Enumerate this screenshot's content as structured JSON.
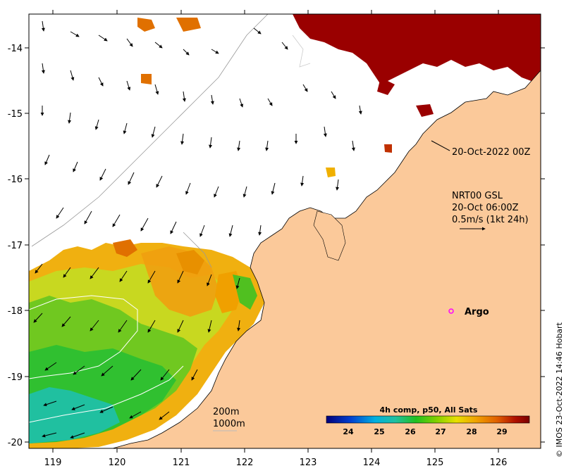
{
  "map": {
    "x_ticks": [
      "119",
      "120",
      "121",
      "122",
      "123",
      "124",
      "125",
      "126"
    ],
    "y_ticks": [
      "-14",
      "-15",
      "-16",
      "-17",
      "-18",
      "-19",
      "-20"
    ],
    "colors": {
      "land": "#fbc99a",
      "cloud": "#ffffff",
      "hot": "#9a0000",
      "frame": "#000000"
    }
  },
  "annotations": {
    "date_label": "20-Oct-2022 00Z",
    "current_source": "NRT00 GSL",
    "current_time": "20-Oct 06:00Z",
    "current_scale": "0.5m/s (1kt 24h)",
    "argo_label": "Argo",
    "contour_200": "200m",
    "contour_1000": "1000m",
    "credit": "© IMOS 23-Oct-2022 14:46 Hobart"
  },
  "colorbar": {
    "title": "4h comp, p50, All Sats",
    "ticks": [
      "24",
      "25",
      "26",
      "27",
      "28",
      "29"
    ],
    "stops": [
      "#00007a",
      "#0040d0",
      "#00b0e0",
      "#20c0a0",
      "#20c020",
      "#80d000",
      "#e8e000",
      "#f0a000",
      "#e06000",
      "#b01000",
      "#7a0000"
    ]
  }
}
